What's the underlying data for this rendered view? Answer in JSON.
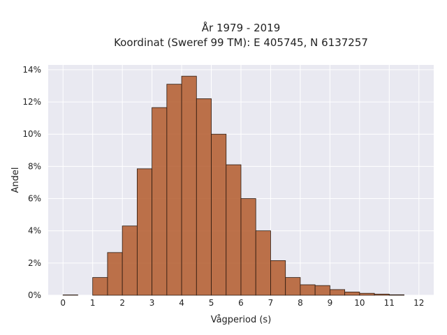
{
  "chart_data": {
    "type": "bar",
    "title": "År 1979 - 2019",
    "subtitle": "Koordinat (Sweref 99 TM): E 405745, N 6137257",
    "xlabel": "Vågperiod (s)",
    "ylabel": "Andel",
    "xlim": [
      -0.5,
      12.5
    ],
    "ylim": [
      0,
      14.3
    ],
    "xticks": [
      0,
      1,
      2,
      3,
      4,
      5,
      6,
      7,
      8,
      9,
      10,
      11,
      12
    ],
    "yticks": [
      0,
      2,
      4,
      6,
      8,
      10,
      12,
      14
    ],
    "ytick_labels": [
      "0%",
      "2%",
      "4%",
      "6%",
      "8%",
      "10%",
      "12%",
      "14%"
    ],
    "bin_width": 0.5,
    "bin_starts": [
      0,
      0.5,
      1,
      1.5,
      2,
      2.5,
      3,
      3.5,
      4,
      4.5,
      5,
      5.5,
      6,
      6.5,
      7,
      7.5,
      8,
      8.5,
      9,
      9.5,
      10,
      10.5,
      11,
      11.5
    ],
    "values": [
      0.02,
      0,
      1.1,
      2.65,
      4.3,
      7.85,
      11.65,
      13.1,
      13.6,
      12.2,
      10.0,
      8.1,
      6.0,
      4.0,
      2.15,
      1.1,
      0.65,
      0.6,
      0.35,
      0.2,
      0.12,
      0.07,
      0.03,
      0
    ],
    "bar_color": "#b35a2c",
    "edge_color": "#2b1a10",
    "plot_background": "#e9e9f1",
    "grid_color": "#ffffff",
    "grid": true
  }
}
